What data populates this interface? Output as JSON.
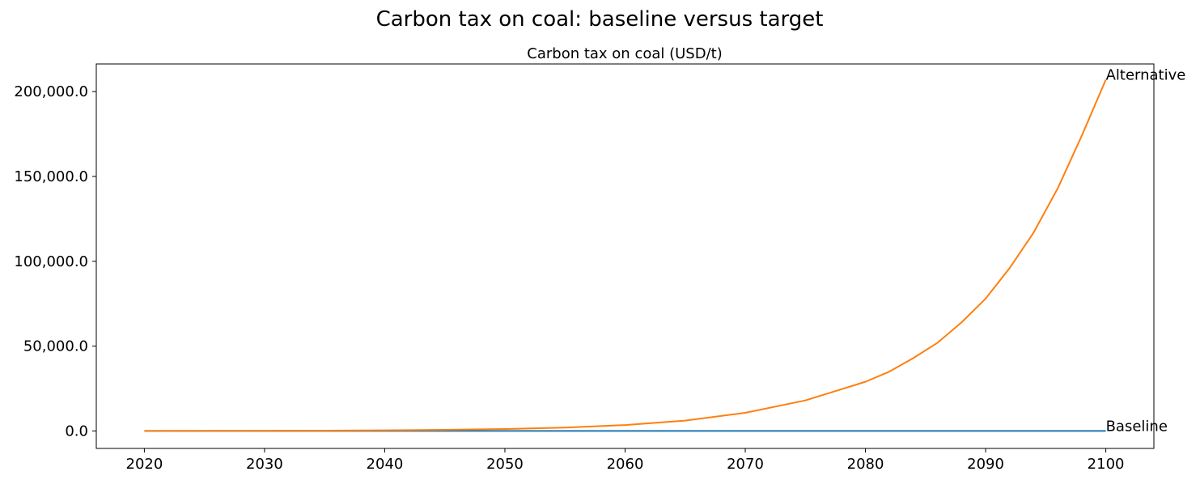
{
  "figure": {
    "title": "Carbon tax on coal: baseline versus target"
  },
  "chart_data": {
    "type": "line",
    "title": "Carbon tax on coal (USD/t)",
    "xlabel": "",
    "ylabel": "",
    "xlim": [
      2016,
      2104
    ],
    "ylim": [
      -10300,
      216300
    ],
    "x_ticks": [
      2020,
      2030,
      2040,
      2050,
      2060,
      2070,
      2080,
      2090,
      2100
    ],
    "y_ticks": [
      0,
      50000,
      100000,
      150000,
      200000
    ],
    "y_tick_labels": [
      "0.0",
      "50,000.0",
      "100,000.0",
      "150,000.0",
      "200,000.0"
    ],
    "grid": false,
    "legend": "none",
    "x": [
      2020,
      2025,
      2030,
      2035,
      2040,
      2045,
      2050,
      2055,
      2060,
      2065,
      2070,
      2075,
      2080,
      2082,
      2084,
      2086,
      2088,
      2090,
      2092,
      2094,
      2096,
      2098,
      2100
    ],
    "series": [
      {
        "name": "Baseline",
        "color": "#1f77b4",
        "values": [
          0,
          0,
          0,
          0,
          0,
          0,
          0,
          0,
          0,
          0,
          0,
          0,
          0,
          0,
          0,
          0,
          0,
          0,
          0,
          0,
          0,
          0,
          0
        ]
      },
      {
        "name": "Alternative",
        "color": "#ff7f0e",
        "values": [
          40,
          70,
          120,
          210,
          370,
          650,
          1140,
          1990,
          3490,
          6100,
          10700,
          18000,
          29000,
          35000,
          43000,
          52000,
          64000,
          78000,
          96000,
          117000,
          143000,
          174000,
          207000
        ]
      }
    ]
  }
}
